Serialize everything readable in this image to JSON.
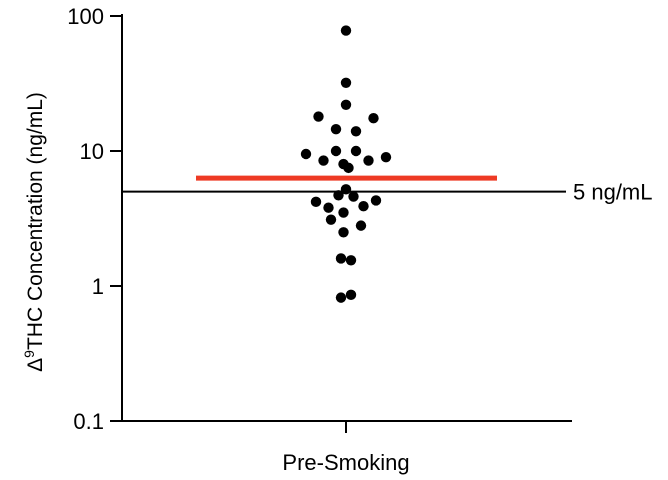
{
  "chart_data": {
    "type": "scatter",
    "scale": "log",
    "ylabel": {
      "prefix": "Δ",
      "superscript": "9",
      "text": "THC Concentration (ng/mL)"
    },
    "ylim": [
      0.1,
      100
    ],
    "yticks": [
      {
        "value": 0.1,
        "label": "0.1"
      },
      {
        "value": 1,
        "label": "1"
      },
      {
        "value": 10,
        "label": "10"
      },
      {
        "value": 100,
        "label": "100"
      }
    ],
    "categories": [
      "Pre-Smoking"
    ],
    "grid": false,
    "reference_line": {
      "value": 5,
      "label": "5 ng/mL",
      "color": "#000000"
    },
    "summary_line": {
      "value": 6.3,
      "color": "#ee3a24"
    },
    "points": [
      {
        "offset": 0,
        "y": 78
      },
      {
        "offset": 0,
        "y": 32
      },
      {
        "offset": 0,
        "y": 22
      },
      {
        "offset": -0.55,
        "y": 18
      },
      {
        "offset": 0.55,
        "y": 17.5
      },
      {
        "offset": -0.2,
        "y": 14.5
      },
      {
        "offset": 0.2,
        "y": 14
      },
      {
        "offset": -0.2,
        "y": 10
      },
      {
        "offset": 0.2,
        "y": 10
      },
      {
        "offset": -0.8,
        "y": 9.5
      },
      {
        "offset": 0.8,
        "y": 9
      },
      {
        "offset": -0.45,
        "y": 8.5
      },
      {
        "offset": 0.45,
        "y": 8.5
      },
      {
        "offset": -0.05,
        "y": 8
      },
      {
        "offset": 0.05,
        "y": 7.5
      },
      {
        "offset": 0,
        "y": 5.2
      },
      {
        "offset": -0.15,
        "y": 4.7
      },
      {
        "offset": 0.15,
        "y": 4.6
      },
      {
        "offset": -0.6,
        "y": 4.2
      },
      {
        "offset": 0.6,
        "y": 4.3
      },
      {
        "offset": -0.35,
        "y": 3.8
      },
      {
        "offset": 0.35,
        "y": 3.9
      },
      {
        "offset": -0.05,
        "y": 3.5
      },
      {
        "offset": -0.3,
        "y": 3.1
      },
      {
        "offset": 0.3,
        "y": 2.8
      },
      {
        "offset": -0.05,
        "y": 2.5
      },
      {
        "offset": -0.1,
        "y": 1.6
      },
      {
        "offset": 0.1,
        "y": 1.55
      },
      {
        "offset": -0.1,
        "y": 0.82
      },
      {
        "offset": 0.1,
        "y": 0.86
      }
    ]
  }
}
